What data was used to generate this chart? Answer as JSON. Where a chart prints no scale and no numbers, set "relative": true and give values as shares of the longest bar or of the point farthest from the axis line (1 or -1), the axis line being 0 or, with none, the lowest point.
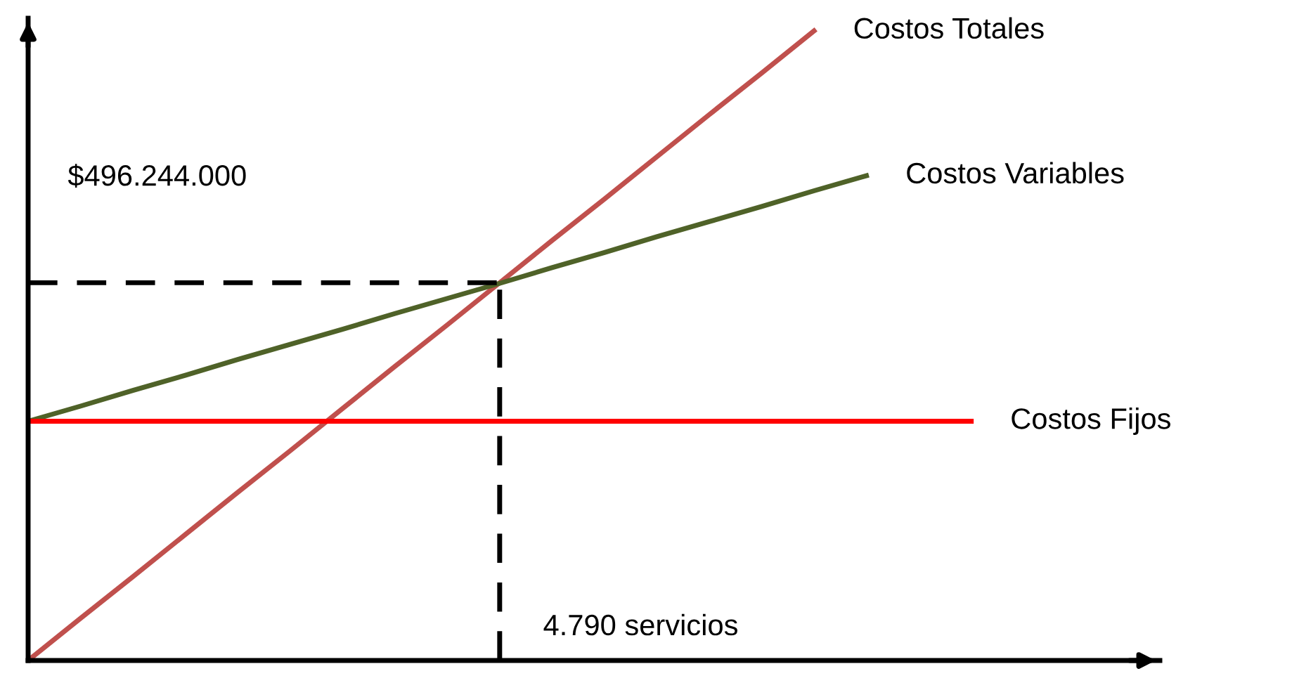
{
  "chart_data": {
    "type": "line",
    "relative": true,
    "categories": [
      null,
      null,
      null,
      null,
      null,
      null,
      null,
      null,
      null,
      null,
      null,
      null,
      null,
      null,
      null,
      null,
      null,
      null,
      null,
      null
    ],
    "series": [
      {
        "name": "Costos Totales",
        "color": "#c0504d",
        "values": [
          0,
          0.067,
          0.133,
          0.2,
          0.267,
          0.333,
          0.4,
          0.467,
          0.533,
          0.6,
          0.667,
          0.733,
          0.8,
          0.867,
          0.933,
          1,
          null,
          null,
          null,
          null
        ]
      },
      {
        "name": "Costos Variables",
        "color": "#4f6228",
        "values": [
          0.38,
          0.404,
          0.429,
          0.453,
          0.478,
          0.502,
          0.526,
          0.551,
          0.575,
          0.599,
          0.624,
          0.648,
          0.673,
          0.697,
          0.721,
          0.746,
          0.77,
          null,
          null,
          null
        ]
      },
      {
        "name": "Costos Fijos",
        "color": "#ff0000",
        "values": [
          0.38,
          0.38,
          0.38,
          0.38,
          0.38,
          0.38,
          0.38,
          0.38,
          0.38,
          0.38,
          0.38,
          0.38,
          0.38,
          0.38,
          0.38,
          0.38,
          0.38,
          0.38,
          0.38,
          null
        ]
      }
    ],
    "ref_lines": [
      {
        "axis": "y",
        "value": 0.6,
        "color": "#000000",
        "line_style": "dashed"
      }
    ],
    "annotations": [
      "$496.244.000",
      "4.790 servicios"
    ],
    "legend": false
  }
}
